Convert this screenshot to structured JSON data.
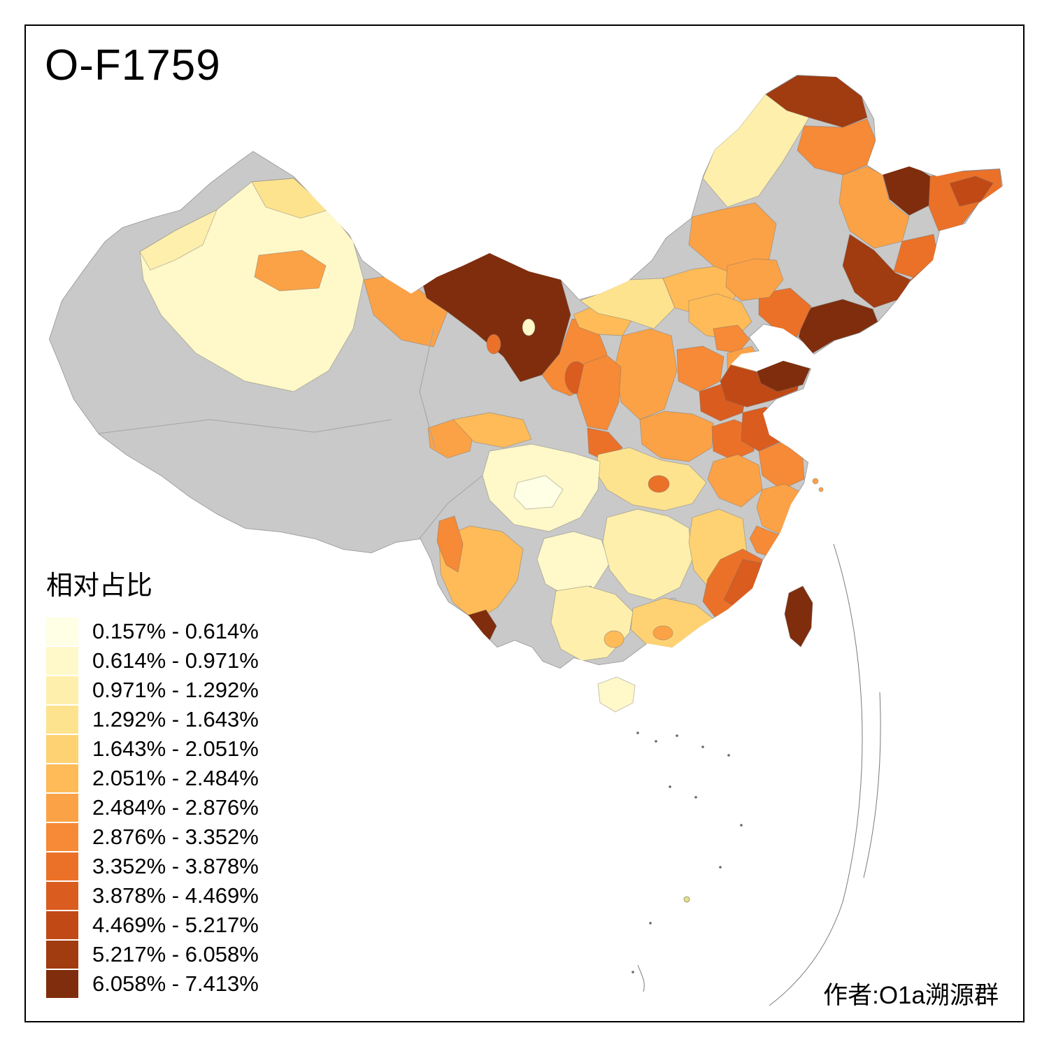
{
  "title": "O-F1759",
  "legend": {
    "title": "相对占比",
    "bins": [
      {
        "label": "0.157% - 0.614%",
        "color": "#FFFFE5"
      },
      {
        "label": "0.614% - 0.971%",
        "color": "#FFF8C9"
      },
      {
        "label": "0.971% - 1.292%",
        "color": "#FEEFAC"
      },
      {
        "label": "1.292% - 1.643%",
        "color": "#FEE38F"
      },
      {
        "label": "1.643% - 2.051%",
        "color": "#FED272"
      },
      {
        "label": "2.051% - 2.484%",
        "color": "#FEBB58"
      },
      {
        "label": "2.484% - 2.876%",
        "color": "#FCA246"
      },
      {
        "label": "2.876% - 3.352%",
        "color": "#F68A37"
      },
      {
        "label": "3.352% - 3.878%",
        "color": "#EB7129"
      },
      {
        "label": "3.878% - 4.469%",
        "color": "#DA5C1F"
      },
      {
        "label": "4.469% - 5.217%",
        "color": "#C14916"
      },
      {
        "label": "5.217% - 6.058%",
        "color": "#A13B10"
      },
      {
        "label": "6.058% - 7.413%",
        "color": "#7F2D0C"
      }
    ]
  },
  "credit": "作者:O1a溯源群",
  "map": {
    "nodata_color": "#C9C9C9",
    "outline_color": "#4D4D4D",
    "regions": {
      "mainland-base": -1,
      "xinjiang-east": 1,
      "xinjiang-nw": 2,
      "xinjiang-north-strip": 3,
      "xinjiang-korla-orange": 6,
      "gansu-west": 6,
      "inner-mongolia-west": 12,
      "im-west-notch": 8,
      "im-west-sliver": 1,
      "alxa": 7,
      "ningxia": 9,
      "hetao": 5,
      "inner-mongolia-mid": 3,
      "inner-mongolia-mid2": 5,
      "inner-mongolia-east": 6,
      "hulunbuir": 2,
      "mohe": 11,
      "heilongjiang-north": 7,
      "heihe": 12,
      "heilongjiang-ne": 8,
      "jiamusi": 10,
      "songyuan": 6,
      "harbin": 8,
      "jilin": 11,
      "yanbian": 9,
      "liaoning": 12,
      "liaoxi": 8,
      "chifeng": 6,
      "hebei-north": 5,
      "beijing": 7,
      "tianjin": 6,
      "shanxi": 6,
      "shaanxi-north": 7,
      "shaanxi-south": 8,
      "hebei-south": 7,
      "shandong-west": 9,
      "shandong": 10,
      "jiaodong": 12,
      "henan": 6,
      "henan-east": 8,
      "jiangsu-north": 9,
      "jiangsu-central": 7,
      "anhui": 6,
      "hubei": 3,
      "chongqing": 8,
      "sichuan-east": 1,
      "chengdu": 0,
      "qinghai-east": 6,
      "gansu-south": 5,
      "yunnan": 5,
      "yunnan-west": 7,
      "xishuangbanna": 12,
      "guizhou": 1,
      "grey-patch-1": -1,
      "grey-patch-2": -1,
      "hunan": 2,
      "jiangxi": 4,
      "zhejiang": 6,
      "zhejiang-south": 7,
      "fujian": 8,
      "fujian-coast": 9,
      "guangdong": 4,
      "pearl-delta": 6,
      "guangxi": 2,
      "guangxi-spot": 5,
      "hainan": 1,
      "taiwan": 12,
      "zhoushan-1": 6,
      "zhoushan-2": 6
    }
  }
}
